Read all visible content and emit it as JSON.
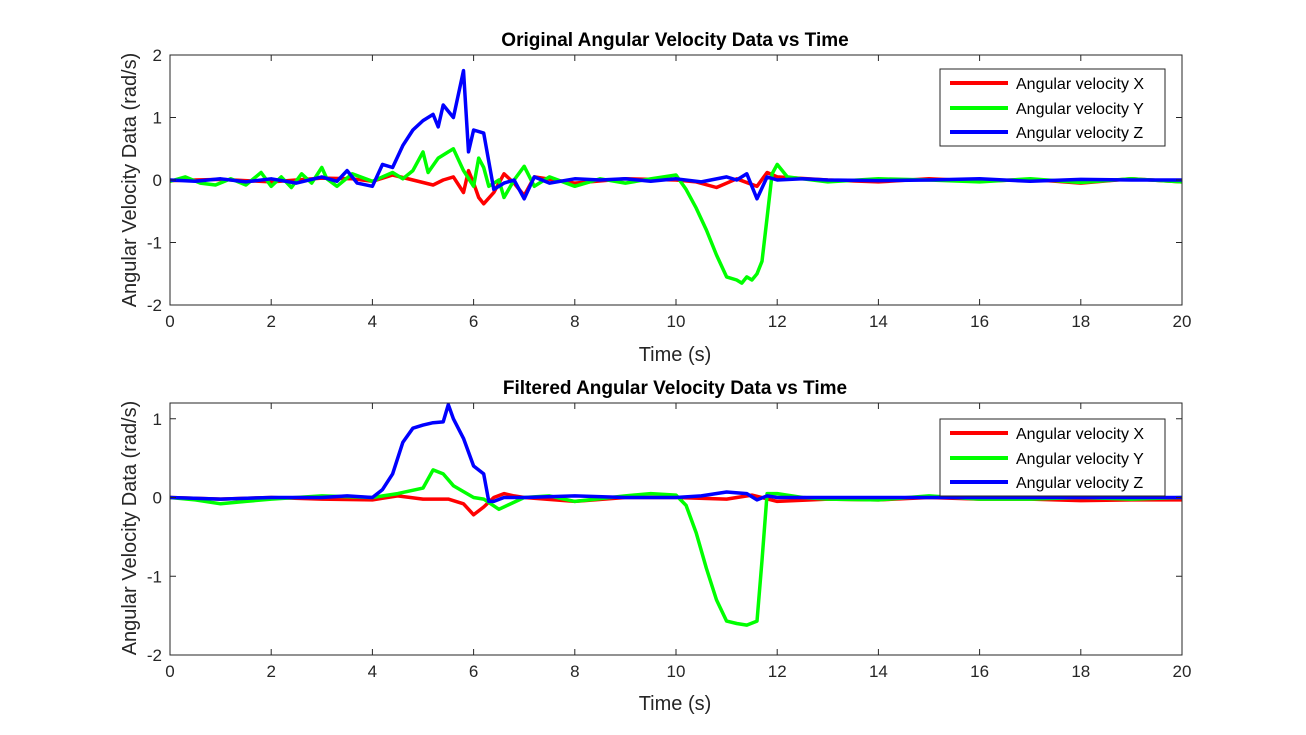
{
  "colors": {
    "x": "#ff0000",
    "y": "#00ff00",
    "z": "#0000ff",
    "axis": "#262626",
    "background": "#ffffff"
  },
  "chart_data": [
    {
      "type": "line",
      "title": "Original Angular Velocity Data vs Time",
      "xlabel": "Time (s)",
      "ylabel": "Angular Velocity Data (rad/s)",
      "xlim": [
        0,
        20
      ],
      "ylim": [
        -2,
        2
      ],
      "xticks": [
        0,
        2,
        4,
        6,
        8,
        10,
        12,
        14,
        16,
        18,
        20
      ],
      "yticks": [
        -2,
        -1,
        0,
        1,
        2
      ],
      "grid": false,
      "legend": "top-right",
      "series": [
        {
          "name": "Angular velocity X",
          "color": "#ff0000",
          "x": [
            0,
            1,
            2,
            3,
            3.6,
            4,
            4.4,
            4.8,
            5.2,
            5.4,
            5.6,
            5.8,
            5.9,
            6.0,
            6.1,
            6.2,
            6.4,
            6.6,
            6.8,
            7.0,
            7.2,
            7.6,
            8,
            9,
            10,
            10.4,
            10.8,
            11.2,
            11.6,
            11.8,
            12,
            13,
            14,
            15,
            16,
            17,
            18,
            19,
            20
          ],
          "y": [
            -0.01,
            0.01,
            -0.03,
            0.03,
            0.02,
            -0.02,
            0.08,
            0.0,
            -0.08,
            0.0,
            0.05,
            -0.2,
            0.15,
            -0.05,
            -0.28,
            -0.38,
            -0.2,
            0.1,
            -0.05,
            -0.25,
            0.05,
            0.0,
            -0.05,
            0.02,
            0.0,
            -0.03,
            -0.12,
            0.02,
            -0.1,
            0.12,
            0.05,
            0.0,
            -0.03,
            0.02,
            -0.02,
            0.01,
            -0.05,
            0.02,
            -0.03
          ]
        },
        {
          "name": "Angular velocity Y",
          "color": "#00ff00",
          "x": [
            0,
            0.3,
            0.6,
            0.9,
            1.2,
            1.5,
            1.8,
            2.0,
            2.2,
            2.4,
            2.6,
            2.8,
            3.0,
            3.1,
            3.3,
            3.6,
            4.0,
            4.4,
            4.6,
            4.8,
            5.0,
            5.1,
            5.3,
            5.5,
            5.6,
            5.8,
            6.0,
            6.1,
            6.2,
            6.3,
            6.5,
            6.6,
            6.8,
            7.0,
            7.2,
            7.5,
            8,
            8.5,
            9,
            9.5,
            10,
            10.2,
            10.4,
            10.6,
            10.8,
            11.0,
            11.2,
            11.3,
            11.4,
            11.5,
            11.6,
            11.7,
            11.8,
            11.9,
            12.0,
            12.2,
            12.5,
            13,
            14,
            15,
            16,
            17,
            18,
            19,
            20
          ],
          "y": [
            -0.02,
            0.05,
            -0.05,
            -0.08,
            0.02,
            -0.08,
            0.12,
            -0.1,
            0.05,
            -0.12,
            0.1,
            -0.05,
            0.2,
            0.02,
            -0.1,
            0.1,
            -0.02,
            0.12,
            0.02,
            0.15,
            0.45,
            0.12,
            0.35,
            0.45,
            0.5,
            0.15,
            -0.1,
            0.35,
            0.2,
            -0.1,
            0.0,
            -0.28,
            0.0,
            0.22,
            -0.1,
            0.05,
            -0.1,
            0.02,
            -0.05,
            0.02,
            0.08,
            -0.15,
            -0.45,
            -0.8,
            -1.2,
            -1.55,
            -1.6,
            -1.65,
            -1.55,
            -1.6,
            -1.5,
            -1.3,
            -0.6,
            0.1,
            0.25,
            0.05,
            0.02,
            -0.03,
            0.02,
            0.0,
            -0.03,
            0.02,
            -0.04,
            0.02,
            -0.03
          ]
        },
        {
          "name": "Angular velocity Z",
          "color": "#0000ff",
          "x": [
            0,
            0.5,
            1.0,
            1.5,
            2.0,
            2.5,
            3.0,
            3.3,
            3.5,
            3.7,
            4.0,
            4.2,
            4.4,
            4.6,
            4.8,
            5.0,
            5.2,
            5.3,
            5.4,
            5.6,
            5.8,
            5.9,
            6.0,
            6.2,
            6.4,
            6.6,
            6.8,
            7.0,
            7.2,
            7.5,
            8,
            8.5,
            9,
            9.5,
            10,
            10.5,
            11,
            11.2,
            11.4,
            11.6,
            11.8,
            12.0,
            12.5,
            13,
            14,
            15,
            16,
            17,
            18,
            19,
            20
          ],
          "y": [
            0.0,
            -0.02,
            0.02,
            -0.03,
            0.02,
            -0.05,
            0.05,
            -0.02,
            0.15,
            -0.05,
            -0.1,
            0.25,
            0.2,
            0.55,
            0.8,
            0.95,
            1.05,
            0.85,
            1.2,
            1.0,
            1.75,
            0.45,
            0.8,
            0.75,
            -0.15,
            -0.05,
            0.0,
            -0.3,
            0.05,
            -0.05,
            0.02,
            0.0,
            0.02,
            -0.02,
            0.02,
            -0.03,
            0.05,
            0.0,
            0.1,
            -0.3,
            0.05,
            0.0,
            0.02,
            0.0,
            -0.01,
            0.0,
            0.02,
            -0.02,
            0.01,
            0.0,
            0.0
          ]
        }
      ]
    },
    {
      "type": "line",
      "title": "Filtered Angular Velocity Data vs Time",
      "xlabel": "Time (s)",
      "ylabel": "Angular Velocity Data (rad/s)",
      "xlim": [
        0,
        20
      ],
      "ylim": [
        -2,
        1.2
      ],
      "xticks": [
        0,
        2,
        4,
        6,
        8,
        10,
        12,
        14,
        16,
        18,
        20
      ],
      "yticks": [
        -2,
        -1,
        0,
        1
      ],
      "grid": false,
      "legend": "top-right",
      "series": [
        {
          "name": "Angular velocity X",
          "color": "#ff0000",
          "x": [
            0,
            1,
            2,
            3,
            4,
            4.5,
            5,
            5.5,
            5.8,
            6.0,
            6.2,
            6.4,
            6.6,
            6.8,
            7.0,
            8,
            9,
            10,
            11,
            11.5,
            12,
            13,
            14,
            15,
            16,
            17,
            18,
            19,
            20
          ],
          "y": [
            0.0,
            -0.02,
            0.0,
            -0.02,
            -0.03,
            0.02,
            -0.02,
            -0.02,
            -0.08,
            -0.22,
            -0.12,
            0.0,
            0.05,
            0.02,
            0.0,
            -0.05,
            0.0,
            0.0,
            -0.02,
            0.03,
            -0.05,
            -0.02,
            -0.03,
            0.0,
            -0.02,
            -0.02,
            -0.04,
            -0.03,
            -0.03
          ]
        },
        {
          "name": "Angular velocity Y",
          "color": "#00ff00",
          "x": [
            0,
            0.5,
            1.0,
            1.5,
            2.0,
            3.0,
            4.0,
            4.5,
            5.0,
            5.2,
            5.4,
            5.6,
            6.0,
            6.2,
            6.5,
            7.0,
            7.5,
            8,
            9,
            9.5,
            10.0,
            10.2,
            10.4,
            10.6,
            10.8,
            11.0,
            11.2,
            11.4,
            11.6,
            11.7,
            11.8,
            12.0,
            12.5,
            13,
            14,
            15,
            16,
            17,
            18,
            19,
            20
          ],
          "y": [
            0.0,
            -0.03,
            -0.08,
            -0.05,
            -0.02,
            0.02,
            0.0,
            0.05,
            0.12,
            0.35,
            0.3,
            0.15,
            0.0,
            -0.02,
            -0.15,
            0.0,
            0.02,
            -0.05,
            0.02,
            0.05,
            0.03,
            -0.1,
            -0.45,
            -0.9,
            -1.3,
            -1.57,
            -1.6,
            -1.62,
            -1.57,
            -0.8,
            0.05,
            0.05,
            0.0,
            -0.02,
            -0.03,
            0.02,
            -0.02,
            -0.02,
            0.0,
            -0.02,
            0.0
          ]
        },
        {
          "name": "Angular velocity Z",
          "color": "#0000ff",
          "x": [
            0,
            1,
            2,
            3,
            3.5,
            4.0,
            4.2,
            4.4,
            4.6,
            4.8,
            5.0,
            5.2,
            5.4,
            5.5,
            5.6,
            5.8,
            6.0,
            6.2,
            6.3,
            6.4,
            6.6,
            7,
            8,
            9,
            10,
            10.5,
            11,
            11.4,
            11.6,
            11.8,
            12.0,
            13,
            14,
            15,
            16,
            17,
            18,
            19,
            20
          ],
          "y": [
            0.0,
            -0.02,
            0.0,
            0.0,
            0.02,
            0.0,
            0.1,
            0.3,
            0.7,
            0.88,
            0.92,
            0.95,
            0.96,
            1.18,
            1.0,
            0.75,
            0.4,
            0.3,
            -0.05,
            -0.05,
            0.0,
            0.0,
            0.02,
            0.0,
            0.0,
            0.02,
            0.07,
            0.05,
            -0.03,
            0.02,
            0.0,
            0.0,
            0.0,
            0.0,
            0.0,
            0.0,
            0.0,
            0.0,
            0.0
          ]
        }
      ]
    }
  ]
}
